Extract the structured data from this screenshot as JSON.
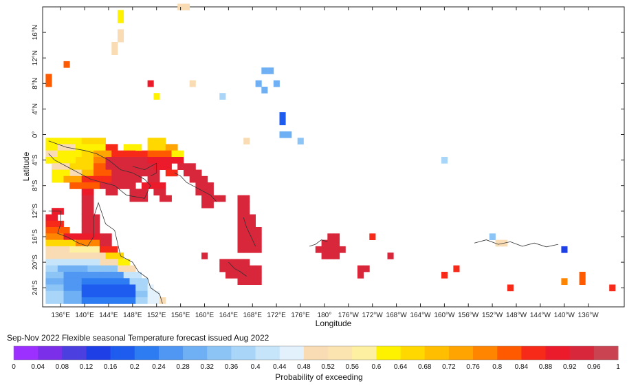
{
  "map": {
    "x_axis_title": "Longitude",
    "y_axis_title": "Latitude",
    "lon_ticks": [
      "136°E",
      "140°E",
      "144°E",
      "148°E",
      "152°E",
      "156°E",
      "160°E",
      "164°E",
      "168°E",
      "172°E",
      "176°E",
      "180°",
      "176°W",
      "172°W",
      "168°W",
      "164°W",
      "160°W",
      "156°W",
      "152°W",
      "148°W",
      "144°W",
      "140°W",
      "136°W"
    ],
    "lat_ticks": [
      "16°N",
      "12°N",
      "8°N",
      "4°N",
      "0°",
      "4°S",
      "8°S",
      "12°S",
      "16°S",
      "20°S",
      "24°S"
    ],
    "lon_range_deg_east": [
      133,
      230
    ],
    "lat_range_deg": [
      -27,
      20
    ],
    "land_color": "#333333",
    "cells": [
      {
        "lon": 146,
        "lat": 19,
        "p": 0.6
      },
      {
        "lon": 146,
        "lat": 18,
        "p": 0.6
      },
      {
        "lon": 146,
        "lat": 16,
        "p": 0.5
      },
      {
        "lon": 146,
        "lat": 15,
        "p": 0.5
      },
      {
        "lon": 145,
        "lat": 14,
        "p": 0.48
      },
      {
        "lon": 145,
        "lat": 13,
        "p": 0.48
      },
      {
        "lon": 137,
        "lat": 11,
        "p": 0.82
      },
      {
        "lon": 134,
        "lat": 9,
        "p": 0.82
      },
      {
        "lon": 134,
        "lat": 8,
        "p": 0.82
      },
      {
        "lon": 151,
        "lat": 8,
        "p": 0.88
      },
      {
        "lon": 152,
        "lat": 6,
        "p": 0.6
      },
      {
        "lon": 158,
        "lat": 8,
        "p": 0.48
      },
      {
        "lon": 163,
        "lat": 6,
        "p": 0.38
      },
      {
        "lon": 170,
        "lat": 10,
        "p": 0.3
      },
      {
        "lon": 171,
        "lat": 10,
        "p": 0.3
      },
      {
        "lon": 169,
        "lat": 8,
        "p": 0.3
      },
      {
        "lon": 170,
        "lat": 7,
        "p": 0.3
      },
      {
        "lon": 172,
        "lat": 8,
        "p": 0.28
      },
      {
        "lon": 173,
        "lat": 3,
        "p": 0.16
      },
      {
        "lon": 173,
        "lat": 2,
        "p": 0.16
      },
      {
        "lon": 173,
        "lat": 0,
        "p": 0.3
      },
      {
        "lon": 174,
        "lat": 0,
        "p": 0.3
      },
      {
        "lon": 176,
        "lat": -1,
        "p": 0.32
      },
      {
        "lon": 167,
        "lat": -1,
        "p": 0.48
      },
      {
        "lon": 149,
        "lat": -2,
        "p": 0.62
      },
      {
        "lon": 156,
        "lat": 20,
        "p": 0.48
      },
      {
        "lon": 157,
        "lat": 20,
        "p": 0.48
      },
      {
        "lon": 200,
        "lat": -4,
        "p": 0.36
      },
      {
        "lon": 181,
        "lat": -16,
        "p": 0.92
      },
      {
        "lon": 182,
        "lat": -16,
        "p": 0.92
      },
      {
        "lon": 180,
        "lat": -17,
        "p": 0.92
      },
      {
        "lon": 181,
        "lat": -17,
        "p": 0.92
      },
      {
        "lon": 182,
        "lat": -17,
        "p": 0.92
      },
      {
        "lon": 179,
        "lat": -18,
        "p": 0.92
      },
      {
        "lon": 180,
        "lat": -18,
        "p": 0.92
      },
      {
        "lon": 181,
        "lat": -18,
        "p": 0.92
      },
      {
        "lon": 182,
        "lat": -18,
        "p": 0.92
      },
      {
        "lon": 183,
        "lat": -18,
        "p": 0.92
      },
      {
        "lon": 180,
        "lat": -19,
        "p": 0.92
      },
      {
        "lon": 181,
        "lat": -19,
        "p": 0.92
      },
      {
        "lon": 182,
        "lat": -19,
        "p": 0.92
      },
      {
        "lon": 186,
        "lat": -21,
        "p": 0.92
      },
      {
        "lon": 187,
        "lat": -21,
        "p": 0.92
      },
      {
        "lon": 186,
        "lat": -22,
        "p": 0.92
      },
      {
        "lon": 188,
        "lat": -16,
        "p": 0.86
      },
      {
        "lon": 191,
        "lat": -19,
        "p": 0.92
      },
      {
        "lon": 160,
        "lat": -19,
        "p": 0.92
      },
      {
        "lon": 200,
        "lat": -22,
        "p": 0.86
      },
      {
        "lon": 202,
        "lat": -21,
        "p": 0.86
      },
      {
        "lon": 208,
        "lat": -16,
        "p": 0.32
      },
      {
        "lon": 209,
        "lat": -17,
        "p": 0.48
      },
      {
        "lon": 210,
        "lat": -17,
        "p": 0.48
      },
      {
        "lon": 211,
        "lat": -24,
        "p": 0.86
      },
      {
        "lon": 220,
        "lat": -18,
        "p": 0.12
      },
      {
        "lon": 220,
        "lat": -23,
        "p": 0.78
      },
      {
        "lon": 223,
        "lat": -22,
        "p": 0.82
      },
      {
        "lon": 223,
        "lat": -23,
        "p": 0.82
      },
      {
        "lon": 228,
        "lat": -24,
        "p": 0.86
      }
    ],
    "australia_cells": [
      {
        "lat": -1,
        "cols": [
          {
            "from": 134,
            "to": 139,
            "p": 0.62
          },
          {
            "from": 140,
            "to": 143,
            "p": 0.66
          },
          {
            "from": 151,
            "to": 153,
            "p": 0.66
          }
        ]
      },
      {
        "lat": -2,
        "cols": [
          {
            "from": 134,
            "to": 135,
            "p": 0.6
          },
          {
            "from": 136,
            "to": 138,
            "p": 0.48
          },
          {
            "from": 139,
            "to": 143,
            "p": 0.62
          },
          {
            "from": 144,
            "to": 145,
            "p": 0.86
          },
          {
            "from": 147,
            "to": 148,
            "p": 0.6
          },
          {
            "from": 151,
            "to": 153,
            "p": 0.66
          },
          {
            "from": 154,
            "to": 155,
            "p": 0.72
          }
        ]
      },
      {
        "lat": -3,
        "cols": [
          {
            "from": 134,
            "to": 135,
            "p": 0.48
          },
          {
            "from": 136,
            "to": 139,
            "p": 0.62
          },
          {
            "from": 140,
            "to": 141,
            "p": 0.66
          },
          {
            "from": 142,
            "to": 144,
            "p": 0.72
          },
          {
            "from": 145,
            "to": 150,
            "p": 0.86
          },
          {
            "from": 151,
            "to": 154,
            "p": 0.8
          },
          {
            "from": 155,
            "to": 156,
            "p": 0.62
          }
        ]
      },
      {
        "lat": -4,
        "cols": [
          {
            "from": 134,
            "to": 138,
            "p": 0.62
          },
          {
            "from": 139,
            "to": 141,
            "p": 0.66
          },
          {
            "from": 142,
            "to": 143,
            "p": 0.78
          },
          {
            "from": 144,
            "to": 150,
            "p": 0.92
          },
          {
            "from": 151,
            "to": 156,
            "p": 0.88
          }
        ]
      },
      {
        "lat": -5,
        "cols": [
          {
            "from": 135,
            "to": 137,
            "p": 0.48
          },
          {
            "from": 138,
            "to": 141,
            "p": 0.64
          },
          {
            "from": 142,
            "to": 143,
            "p": 0.8
          },
          {
            "from": 144,
            "to": 151,
            "p": 0.92
          },
          {
            "from": 152,
            "to": 154,
            "p": 0.88
          },
          {
            "from": 156,
            "to": 158,
            "p": 0.92
          }
        ]
      },
      {
        "lat": -6,
        "cols": [
          {
            "from": 135,
            "to": 137,
            "p": 0.6
          },
          {
            "from": 138,
            "to": 139,
            "p": 0.5
          },
          {
            "from": 140,
            "to": 141,
            "p": 0.68
          },
          {
            "from": 142,
            "to": 144,
            "p": 0.82
          },
          {
            "from": 145,
            "to": 152,
            "p": 0.92
          },
          {
            "from": 154,
            "to": 155,
            "p": 0.86
          },
          {
            "from": 157,
            "to": 159,
            "p": 0.92
          }
        ]
      },
      {
        "lat": -7,
        "cols": [
          {
            "from": 135,
            "to": 136,
            "p": 0.6
          },
          {
            "from": 137,
            "to": 139,
            "p": 0.72
          },
          {
            "from": 140,
            "to": 144,
            "p": 0.84
          },
          {
            "from": 145,
            "to": 149,
            "p": 0.92
          },
          {
            "from": 151,
            "to": 152,
            "p": 0.92
          },
          {
            "from": 158,
            "to": 160,
            "p": 0.92
          }
        ]
      },
      {
        "lat": -8,
        "cols": [
          {
            "from": 138,
            "to": 142,
            "p": 0.8
          },
          {
            "from": 143,
            "to": 148,
            "p": 0.92
          },
          {
            "from": 150,
            "to": 153,
            "p": 0.88
          },
          {
            "from": 159,
            "to": 161,
            "p": 0.92
          }
        ]
      },
      {
        "lat": -9,
        "cols": [
          {
            "from": 140,
            "to": 141,
            "p": 0.88
          },
          {
            "from": 144,
            "to": 145,
            "p": 0.92
          },
          {
            "from": 148,
            "to": 150,
            "p": 0.92
          },
          {
            "from": 152,
            "to": 153,
            "p": 0.92
          },
          {
            "from": 159,
            "to": 161,
            "p": 0.92
          }
        ]
      },
      {
        "lat": -10,
        "cols": [
          {
            "from": 140,
            "to": 141,
            "p": 0.92
          },
          {
            "from": 148,
            "to": 150,
            "p": 0.92
          },
          {
            "from": 153,
            "to": 154,
            "p": 0.92
          },
          {
            "from": 160,
            "to": 163,
            "p": 0.92
          },
          {
            "from": 166,
            "to": 167,
            "p": 0.92
          }
        ]
      },
      {
        "lat": -11,
        "cols": [
          {
            "from": 140,
            "to": 141,
            "p": 0.92
          },
          {
            "from": 160,
            "to": 161,
            "p": 0.92
          },
          {
            "from": 166,
            "to": 167,
            "p": 0.92
          }
        ]
      },
      {
        "lat": -12,
        "cols": [
          {
            "from": 135,
            "to": 136,
            "p": 0.88
          },
          {
            "from": 140,
            "to": 141,
            "p": 0.92
          },
          {
            "from": 166,
            "to": 167,
            "p": 0.92
          }
        ]
      },
      {
        "lat": -13,
        "cols": [
          {
            "from": 134,
            "to": 135,
            "p": 0.88
          },
          {
            "from": 140,
            "to": 142,
            "p": 0.92
          },
          {
            "from": 166,
            "to": 168,
            "p": 0.92
          }
        ]
      },
      {
        "lat": -14,
        "cols": [
          {
            "from": 134,
            "to": 136,
            "p": 0.86
          },
          {
            "from": 140,
            "to": 142,
            "p": 0.92
          },
          {
            "from": 166,
            "to": 168,
            "p": 0.92
          }
        ]
      },
      {
        "lat": -15,
        "cols": [
          {
            "from": 134,
            "to": 137,
            "p": 0.82
          },
          {
            "from": 140,
            "to": 142,
            "p": 0.92
          },
          {
            "from": 166,
            "to": 169,
            "p": 0.92
          }
        ]
      },
      {
        "lat": -16,
        "cols": [
          {
            "from": 134,
            "to": 136,
            "p": 0.76
          },
          {
            "from": 137,
            "to": 142,
            "p": 0.88
          },
          {
            "from": 143,
            "to": 144,
            "p": 0.92
          },
          {
            "from": 166,
            "to": 169,
            "p": 0.92
          }
        ]
      },
      {
        "lat": -17,
        "cols": [
          {
            "from": 134,
            "to": 138,
            "p": 0.66
          },
          {
            "from": 139,
            "to": 142,
            "p": 0.76
          },
          {
            "from": 143,
            "to": 144,
            "p": 0.92
          },
          {
            "from": 166,
            "to": 169,
            "p": 0.92
          }
        ]
      },
      {
        "lat": -18,
        "cols": [
          {
            "from": 134,
            "to": 137,
            "p": 0.48
          },
          {
            "from": 138,
            "to": 142,
            "p": 0.58
          },
          {
            "from": 143,
            "to": 145,
            "p": 0.86
          },
          {
            "from": 166,
            "to": 169,
            "p": 0.92
          }
        ]
      },
      {
        "lat": -19,
        "cols": [
          {
            "from": 134,
            "to": 138,
            "p": 0.48
          },
          {
            "from": 139,
            "to": 143,
            "p": 0.5
          },
          {
            "from": 144,
            "to": 146,
            "p": 0.64
          }
        ]
      },
      {
        "lat": -20,
        "cols": [
          {
            "from": 134,
            "to": 136,
            "p": 0.4
          },
          {
            "from": 137,
            "to": 142,
            "p": 0.42
          },
          {
            "from": 143,
            "to": 145,
            "p": 0.48
          },
          {
            "from": 146,
            "to": 147,
            "p": 0.62
          },
          {
            "from": 163,
            "to": 167,
            "p": 0.92
          }
        ]
      },
      {
        "lat": -21,
        "cols": [
          {
            "from": 134,
            "to": 135,
            "p": 0.36
          },
          {
            "from": 136,
            "to": 140,
            "p": 0.3
          },
          {
            "from": 141,
            "to": 145,
            "p": 0.34
          },
          {
            "from": 146,
            "to": 148,
            "p": 0.48
          },
          {
            "from": 163,
            "to": 169,
            "p": 0.92
          }
        ]
      },
      {
        "lat": -22,
        "cols": [
          {
            "from": 134,
            "to": 136,
            "p": 0.32
          },
          {
            "from": 137,
            "to": 139,
            "p": 0.26
          },
          {
            "from": 140,
            "to": 146,
            "p": 0.24
          },
          {
            "from": 147,
            "to": 149,
            "p": 0.4
          },
          {
            "from": 164,
            "to": 169,
            "p": 0.92
          }
        ]
      },
      {
        "lat": -23,
        "cols": [
          {
            "from": 134,
            "to": 136,
            "p": 0.3
          },
          {
            "from": 137,
            "to": 139,
            "p": 0.24
          },
          {
            "from": 140,
            "to": 147,
            "p": 0.2
          },
          {
            "from": 148,
            "to": 150,
            "p": 0.36
          },
          {
            "from": 166,
            "to": 169,
            "p": 0.92
          }
        ]
      },
      {
        "lat": -24,
        "cols": [
          {
            "from": 134,
            "to": 136,
            "p": 0.34
          },
          {
            "from": 137,
            "to": 139,
            "p": 0.24
          },
          {
            "from": 140,
            "to": 148,
            "p": 0.18
          },
          {
            "from": 149,
            "to": 150,
            "p": 0.38
          },
          {
            "from": 151,
            "to": 151,
            "p": 0.44
          }
        ]
      },
      {
        "lat": -25,
        "cols": [
          {
            "from": 134,
            "to": 136,
            "p": 0.36
          },
          {
            "from": 137,
            "to": 139,
            "p": 0.28
          },
          {
            "from": 140,
            "to": 148,
            "p": 0.18
          },
          {
            "from": 149,
            "to": 150,
            "p": 0.34
          },
          {
            "from": 151,
            "to": 152,
            "p": 0.44
          }
        ]
      },
      {
        "lat": -26,
        "cols": [
          {
            "from": 134,
            "to": 136,
            "p": 0.36
          },
          {
            "from": 137,
            "to": 139,
            "p": 0.3
          },
          {
            "from": 140,
            "to": 148,
            "p": 0.2
          },
          {
            "from": 149,
            "to": 150,
            "p": 0.36
          },
          {
            "from": 151,
            "to": 152,
            "p": 0.46
          },
          {
            "from": 153,
            "to": 153,
            "p": 0.48
          }
        ]
      }
    ]
  },
  "caption": "Sep-Nov 2022 Flexible seasonal Temperature forecast issued Aug 2022",
  "colorbar": {
    "title": "Probability of exceeding",
    "tick_labels": [
      "0",
      "0.04",
      "0.08",
      "0.12",
      "0.16",
      "0.2",
      "0.24",
      "0.28",
      "0.32",
      "0.36",
      "0.4",
      "0.44",
      "0.48",
      "0.52",
      "0.56",
      "0.6",
      "0.64",
      "0.68",
      "0.72",
      "0.76",
      "0.8",
      "0.84",
      "0.88",
      "0.92",
      "0.96",
      "1"
    ],
    "colors": [
      "#9b30ff",
      "#7b2fe8",
      "#4b3fe0",
      "#1f3fe6",
      "#1e5cf0",
      "#2e7cf2",
      "#4f97f2",
      "#6fb0f4",
      "#8cc4f6",
      "#a9d6f8",
      "#c6e4fa",
      "#e2f1fc",
      "#f9dcb4",
      "#fbe4b0",
      "#fdf0a0",
      "#fff200",
      "#ffd800",
      "#ffbf00",
      "#ffa400",
      "#ff8400",
      "#ff5a00",
      "#f72a1a",
      "#ec1b2b",
      "#d8263a",
      "#c94450"
    ]
  }
}
